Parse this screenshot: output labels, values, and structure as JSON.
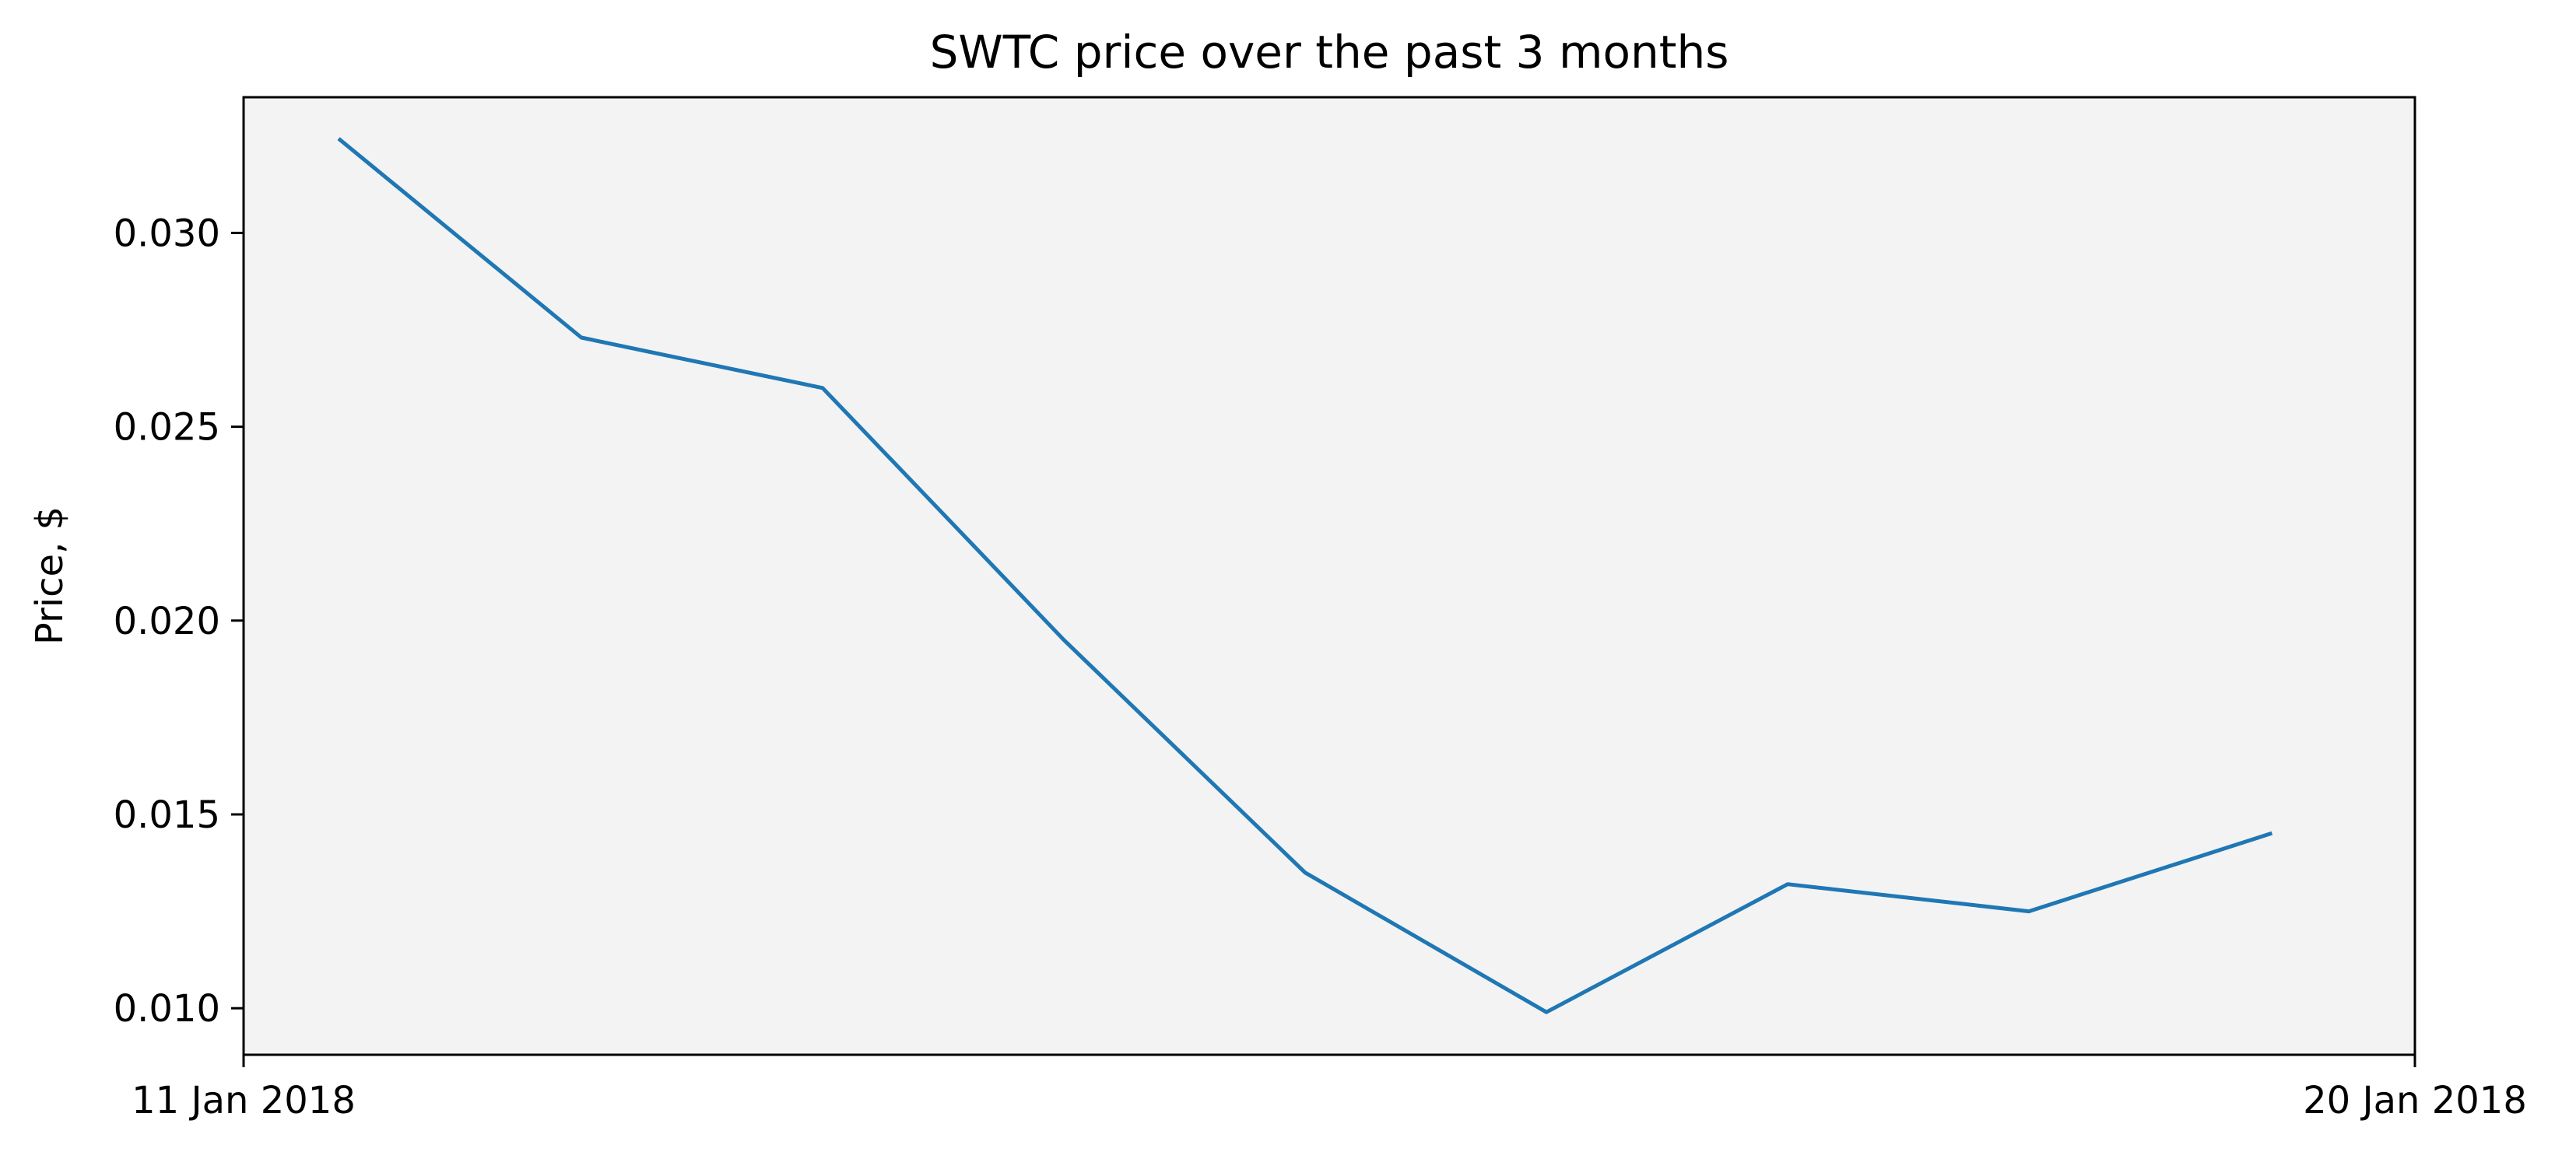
{
  "chart_data": {
    "type": "line",
    "title": "SWTC price over the past 3 months",
    "xlabel": "",
    "ylabel": "Price, $",
    "x_tick_labels": [
      "11 Jan 2018",
      "20 Jan 2018"
    ],
    "y_ticks": [
      0.01,
      0.015,
      0.02,
      0.025,
      0.03
    ],
    "y_tick_labels": [
      "0.010",
      "0.015",
      "0.020",
      "0.025",
      "0.030"
    ],
    "ylim": [
      0.0088,
      0.0335
    ],
    "xlim": [
      0,
      9
    ],
    "grid": false,
    "legend": "none",
    "series": [
      {
        "x": [
          0.4,
          1.4,
          2.4,
          3.4,
          4.4,
          5.4,
          6.4,
          7.4,
          8.4
        ],
        "values": [
          0.0324,
          0.0273,
          0.026,
          0.0195,
          0.0135,
          0.0099,
          0.0132,
          0.0125,
          0.0145
        ]
      }
    ],
    "colors": {
      "line": "#1f77b4",
      "plot_background": "#f3f3f3",
      "axes": "#000000"
    }
  }
}
